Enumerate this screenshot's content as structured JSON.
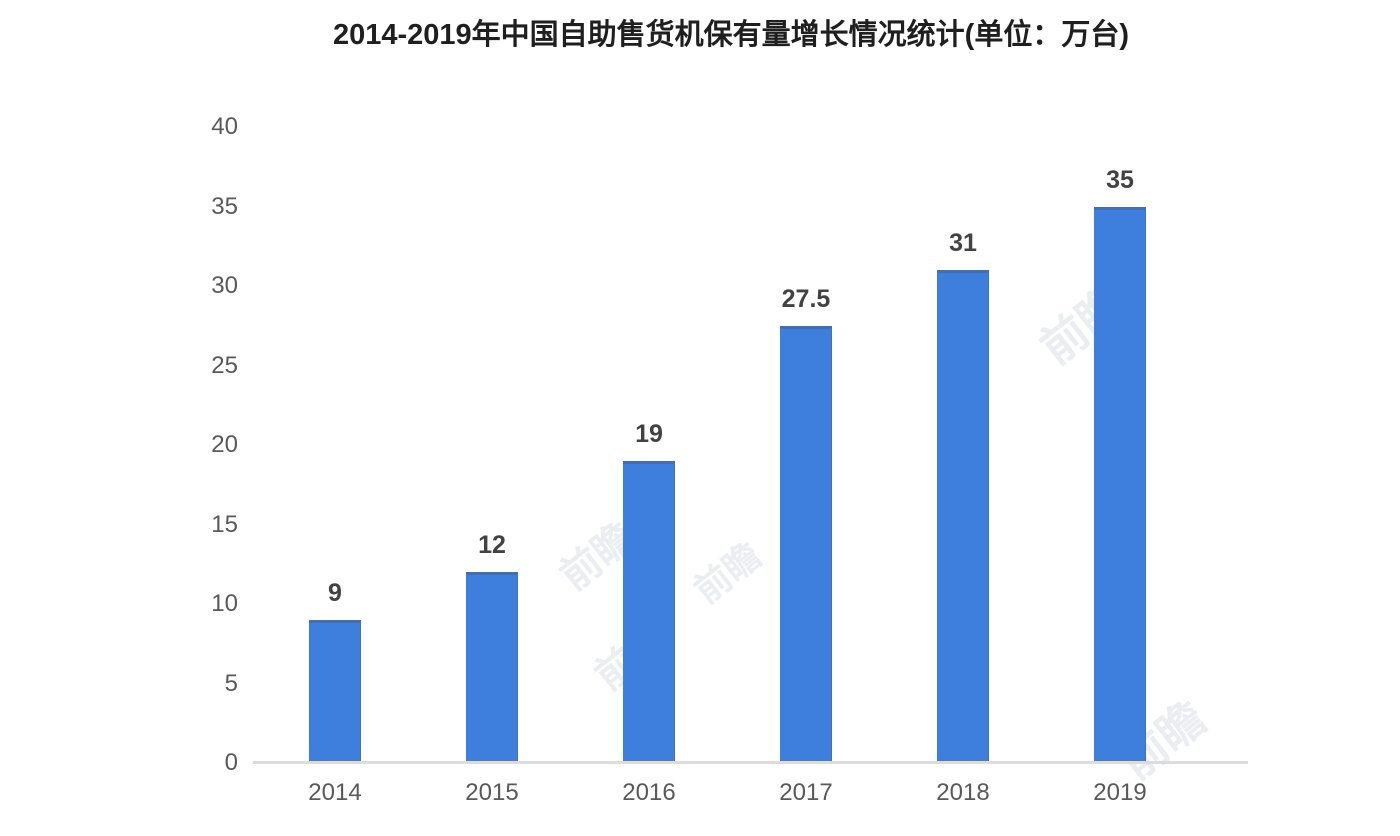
{
  "chart_data": {
    "type": "bar",
    "title": "2014-2019年中国自助售货机保有量增长情况统计(单位：万台)",
    "categories": [
      "2014",
      "2015",
      "2016",
      "2017",
      "2018",
      "2019"
    ],
    "values": [
      9,
      12,
      19,
      27.5,
      31,
      35
    ],
    "value_labels": [
      "9",
      "12",
      "19",
      "27.5",
      "31",
      "35"
    ],
    "series_name": "自助售货机保有量",
    "xlabel": "",
    "ylabel": "",
    "y_ticks": [
      0,
      5,
      10,
      15,
      20,
      25,
      30,
      35,
      40
    ],
    "ylim": [
      0,
      40
    ],
    "grid": false,
    "legend": false,
    "bar_color": "#3e7edd",
    "bar_top_edge_color": "rgba(84,96,114,0.55)",
    "axis_line_color": "#dcdcdc",
    "tick_label_color": "#595959",
    "value_label_color": "#424242",
    "title_color": "#1f1f1f",
    "background_color": "#ffffff"
  },
  "watermark": {
    "text": "前瞻"
  }
}
